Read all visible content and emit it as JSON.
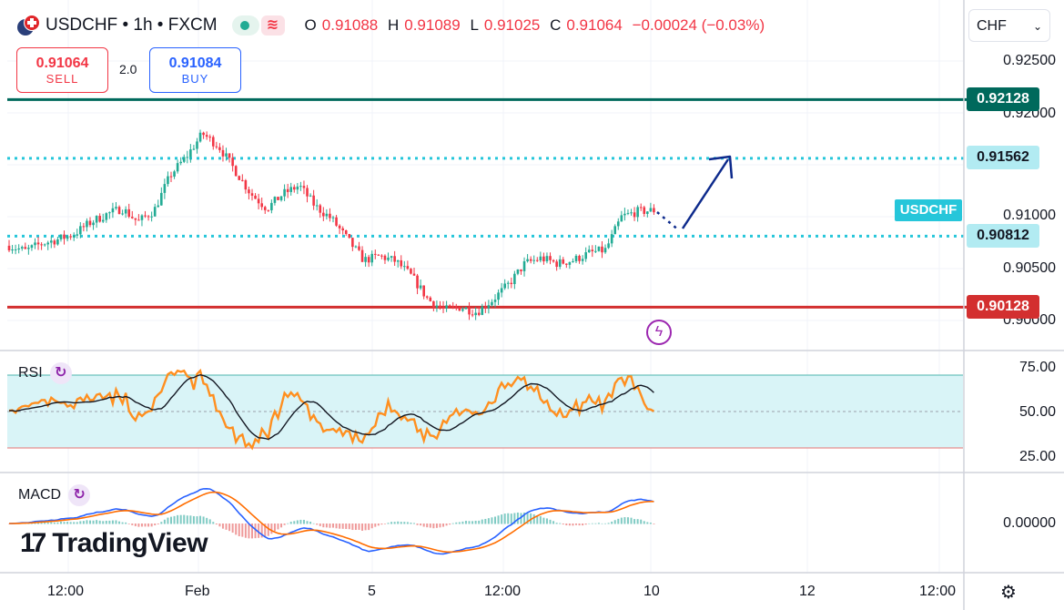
{
  "header": {
    "symbol": "USDCHF",
    "interval": "1h",
    "exchange": "FXCM",
    "title": "USDCHF • 1h • FXCM",
    "ohlc": {
      "open_label": "O",
      "open": "0.91088",
      "high_label": "H",
      "high": "0.91089",
      "low_label": "L",
      "low": "0.91025",
      "close_label": "C",
      "close": "0.91064",
      "change": "−0.00024 (−0.03%)"
    }
  },
  "trade": {
    "sell_price": "0.91064",
    "sell_label": "SELL",
    "spread": "2.0",
    "buy_price": "0.91084",
    "buy_label": "BUY"
  },
  "currency_selector": "CHF",
  "symbol_tag": "USDCHF",
  "price_axis": [
    "0.92500",
    "0.92000",
    "0.91000",
    "0.90500",
    "0.90000"
  ],
  "price_tags": {
    "resistance": "0.92128",
    "target": "0.91562",
    "current": "0.90812",
    "support": "0.90128"
  },
  "rsi": {
    "label": "RSI",
    "axis": [
      "75.00",
      "50.00",
      "25.00"
    ]
  },
  "macd": {
    "label": "MACD",
    "axis": [
      "0.00000"
    ]
  },
  "time_axis": [
    "12:00",
    "Feb",
    "5",
    "12:00",
    "10",
    "12",
    "12:00"
  ],
  "logo": "TradingView",
  "colors": {
    "up": "#22ab94",
    "down": "#f23645",
    "resistance": "#00695c",
    "support": "#d32f2f",
    "dotted": "#26c6da",
    "rsi": "#ff8f1f",
    "macd": "#2962ff",
    "signal": "#ff6d00",
    "arrow": "#0d2a8c"
  },
  "chart_data": {
    "type": "candlestick",
    "price_levels": {
      "resistance": 0.92128,
      "target": 0.91562,
      "pivot": 0.90812,
      "support": 0.90128
    },
    "close_path": [
      0.9072,
      0.9067,
      0.9074,
      0.9078,
      0.9083,
      0.9094,
      0.9102,
      0.9108,
      0.9095,
      0.9106,
      0.914,
      0.9158,
      0.918,
      0.9168,
      0.9145,
      0.9122,
      0.9108,
      0.9122,
      0.913,
      0.911,
      0.9098,
      0.9078,
      0.9058,
      0.9062,
      0.9057,
      0.9042,
      0.902,
      0.901,
      0.9013,
      0.9008,
      0.902,
      0.9035,
      0.9055,
      0.906,
      0.9055,
      0.9058,
      0.9065,
      0.9068,
      0.91,
      0.9105,
      0.9106
    ]
  }
}
